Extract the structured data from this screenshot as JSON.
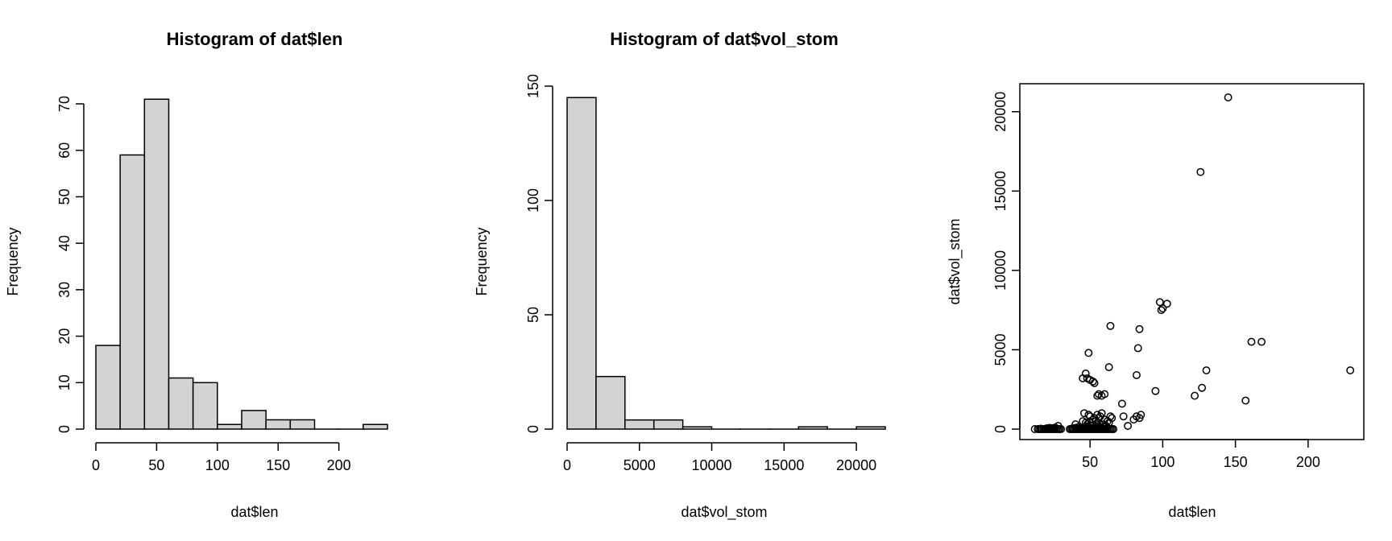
{
  "colors": {
    "bar_fill": "#d3d3d3",
    "stroke": "#000000",
    "background": "#ffffff"
  },
  "chart_data": [
    {
      "type": "bar",
      "title": "Histogram of dat$len",
      "xlabel": "dat$len",
      "ylabel": "Frequency",
      "bins": [
        [
          0,
          20
        ],
        [
          20,
          40
        ],
        [
          40,
          60
        ],
        [
          60,
          80
        ],
        [
          80,
          100
        ],
        [
          100,
          120
        ],
        [
          120,
          140
        ],
        [
          140,
          160
        ],
        [
          160,
          180
        ],
        [
          180,
          200
        ],
        [
          200,
          220
        ],
        [
          220,
          240
        ]
      ],
      "values": [
        18,
        59,
        71,
        11,
        10,
        1,
        4,
        2,
        2,
        0,
        0,
        1
      ],
      "xlim": [
        0,
        240
      ],
      "ylim": [
        0,
        70
      ],
      "xticks": [
        0,
        50,
        100,
        150,
        200
      ],
      "yticks": [
        0,
        10,
        20,
        30,
        40,
        50,
        60,
        70
      ],
      "grid": false
    },
    {
      "type": "bar",
      "title": "Histogram of dat$vol_stom",
      "xlabel": "dat$vol_stom",
      "ylabel": "Frequency",
      "bins": [
        [
          0,
          2000
        ],
        [
          2000,
          4000
        ],
        [
          4000,
          6000
        ],
        [
          6000,
          8000
        ],
        [
          8000,
          10000
        ],
        [
          10000,
          12000
        ],
        [
          12000,
          14000
        ],
        [
          14000,
          16000
        ],
        [
          16000,
          18000
        ],
        [
          18000,
          20000
        ],
        [
          20000,
          22000
        ]
      ],
      "values": [
        145,
        23,
        4,
        4,
        1,
        0,
        0,
        0,
        1,
        0,
        1
      ],
      "xlim": [
        0,
        22000
      ],
      "ylim": [
        0,
        150
      ],
      "xticks": [
        0,
        5000,
        10000,
        15000,
        20000
      ],
      "yticks": [
        0,
        50,
        100,
        150
      ],
      "grid": false
    },
    {
      "type": "scatter",
      "title": "",
      "xlabel": "dat$len",
      "ylabel": "dat$vol_stom",
      "xlim": [
        10,
        230
      ],
      "ylim": [
        0,
        20900
      ],
      "xticks": [
        50,
        100,
        150,
        200
      ],
      "yticks": [
        0,
        5000,
        10000,
        15000,
        20000
      ],
      "grid": false,
      "x": [
        12,
        14,
        15,
        16,
        17,
        18,
        19,
        20,
        21,
        22,
        23,
        24,
        25,
        26,
        27,
        28,
        29,
        30,
        16,
        20,
        24,
        22,
        26,
        28,
        36,
        37,
        38,
        39,
        40,
        41,
        42,
        43,
        44,
        45,
        46,
        47,
        48,
        49,
        50,
        51,
        52,
        53,
        54,
        55,
        56,
        57,
        58,
        59,
        60,
        61,
        62,
        63,
        64,
        65,
        66,
        38,
        40,
        42,
        44,
        46,
        48,
        50,
        52,
        54,
        56,
        58,
        60,
        62,
        40,
        45,
        50,
        55,
        60,
        47,
        49,
        46,
        50,
        52,
        53,
        55,
        54,
        57,
        58,
        56,
        60,
        62,
        63,
        61,
        59,
        64,
        65,
        55,
        48,
        51,
        57,
        49,
        64,
        84,
        83,
        63,
        82,
        47,
        45,
        48,
        50,
        52,
        53,
        55,
        56,
        58,
        60,
        72,
        73,
        85,
        82,
        84,
        80,
        76,
        98,
        100,
        103,
        99,
        95,
        130,
        127,
        122,
        157,
        161,
        168,
        126,
        145,
        229
      ],
      "y": [
        0,
        0,
        0,
        0,
        0,
        0,
        0,
        0,
        0,
        0,
        0,
        0,
        0,
        0,
        0,
        0,
        0,
        0,
        30,
        50,
        60,
        80,
        100,
        200,
        0,
        0,
        0,
        0,
        0,
        0,
        0,
        0,
        0,
        0,
        0,
        0,
        0,
        0,
        0,
        0,
        0,
        0,
        0,
        0,
        0,
        0,
        0,
        0,
        0,
        0,
        0,
        0,
        0,
        0,
        0,
        50,
        80,
        120,
        60,
        90,
        150,
        100,
        70,
        130,
        60,
        90,
        120,
        80,
        300,
        500,
        250,
        400,
        200,
        400,
        900,
        1000,
        800,
        600,
        700,
        900,
        500,
        800,
        1000,
        700,
        600,
        500,
        400,
        200,
        300,
        800,
        700,
        200,
        300,
        200,
        100,
        4800,
        6500,
        6300,
        5100,
        3900,
        3400,
        3500,
        3200,
        3200,
        3100,
        3000,
        2900,
        2100,
        2200,
        2100,
        2200,
        1600,
        800,
        900,
        800,
        700,
        600,
        200,
        8000,
        7600,
        7900,
        7500,
        2400,
        3700,
        2600,
        2100,
        1800,
        5500,
        5500,
        16200,
        20900,
        3700
      ]
    }
  ]
}
